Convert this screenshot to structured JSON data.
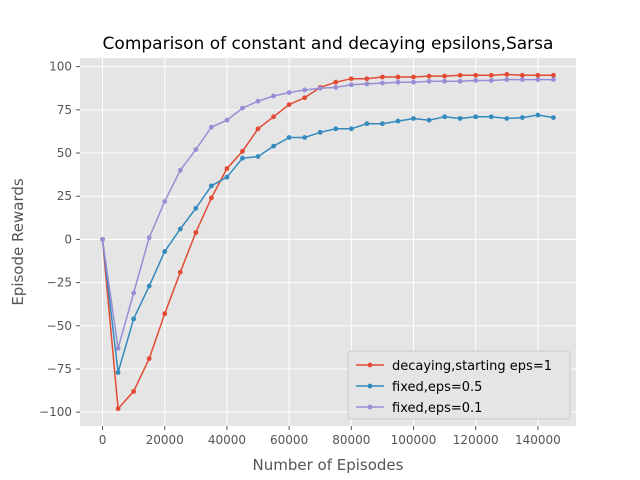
{
  "chart_data": {
    "type": "line",
    "title": "Comparison of constant and decaying epsilons,Sarsa",
    "xlabel": "Number of Episodes",
    "ylabel": "Episode Rewards",
    "xlim": [
      -7250,
      152250
    ],
    "ylim": [
      -108,
      105
    ],
    "xticks": [
      0,
      20000,
      40000,
      60000,
      80000,
      100000,
      120000,
      140000
    ],
    "yticks": [
      -100,
      -75,
      -50,
      -25,
      0,
      25,
      50,
      75,
      100
    ],
    "grid": true,
    "legend_position": "lower-right",
    "x": [
      0,
      5000,
      10000,
      15000,
      20000,
      25000,
      30000,
      35000,
      40000,
      45000,
      50000,
      55000,
      60000,
      65000,
      70000,
      75000,
      80000,
      85000,
      90000,
      95000,
      100000,
      105000,
      110000,
      115000,
      120000,
      125000,
      130000,
      135000,
      140000,
      145000
    ],
    "series": [
      {
        "name": "decaying,starting eps=1",
        "color": "#E24A33",
        "values": [
          0,
          -98,
          -88,
          -69,
          -43,
          -19,
          4,
          24,
          41,
          51,
          64,
          71,
          78,
          82,
          88,
          91,
          93,
          93,
          94,
          94,
          94,
          94.5,
          94.5,
          95,
          95,
          95,
          95.5,
          95,
          95,
          95
        ]
      },
      {
        "name": "fixed,eps=0.5",
        "color": "#348ABD",
        "values": [
          0,
          -77,
          -46,
          -27,
          -7,
          6,
          18,
          31,
          36,
          47,
          48,
          54,
          59,
          59,
          62,
          64,
          64,
          67,
          67,
          68.5,
          70,
          69,
          71,
          70,
          71,
          71,
          70,
          70.5,
          72,
          70.5
        ]
      },
      {
        "name": "fixed,eps=0.1",
        "color": "#988ED5",
        "values": [
          0,
          -63,
          -31,
          1,
          22,
          40,
          52,
          65,
          69,
          76,
          80,
          83,
          85,
          86.5,
          87.5,
          88,
          89.5,
          90,
          90.5,
          91,
          91,
          91.5,
          91.5,
          91.5,
          92,
          92,
          92.5,
          92.5,
          92.5,
          92.5
        ]
      }
    ]
  }
}
